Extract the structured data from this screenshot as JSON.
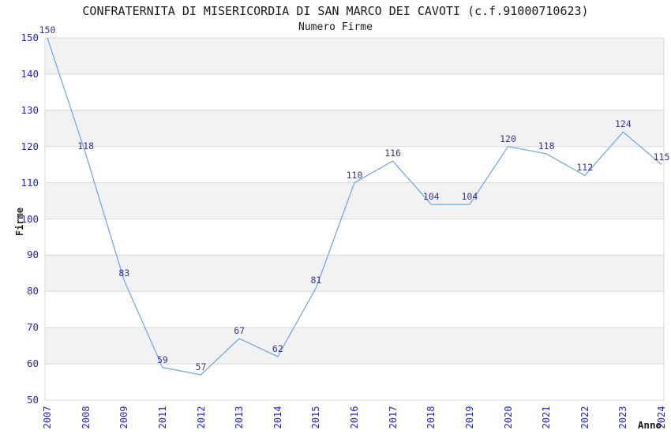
{
  "chart_data": {
    "type": "line",
    "title": "CONFRATERNITA DI MISERICORDIA DI SAN MARCO DEI CAVOTI (c.f.91000710623)",
    "subtitle": "Numero Firme",
    "xlabel": "Anno",
    "ylabel": "Firme",
    "categories": [
      "2007",
      "2008",
      "2009",
      "2011",
      "2012",
      "2013",
      "2014",
      "2015",
      "2016",
      "2017",
      "2018",
      "2019",
      "2020",
      "2021",
      "2022",
      "2023",
      "2024"
    ],
    "values": [
      150,
      118,
      83,
      59,
      57,
      67,
      62,
      81,
      110,
      116,
      104,
      104,
      120,
      118,
      112,
      124,
      115
    ],
    "data_labels_visible": true,
    "ylim": [
      50,
      150
    ],
    "yticks": [
      50,
      60,
      70,
      80,
      90,
      100,
      110,
      120,
      130,
      140,
      150
    ],
    "grid": true,
    "gray_bands": [
      [
        60,
        70
      ],
      [
        80,
        90
      ],
      [
        100,
        110
      ],
      [
        120,
        130
      ],
      [
        140,
        150
      ]
    ],
    "legend": "none",
    "colors": {
      "line": "#76a9e6",
      "data_label": "#333399",
      "tick_label": "#2424cc",
      "title": "#1a1a1a",
      "axis_title": "#222222",
      "band": "#f2f2f2",
      "gridline": "#d9d9d9",
      "background": "#ffffff"
    }
  }
}
